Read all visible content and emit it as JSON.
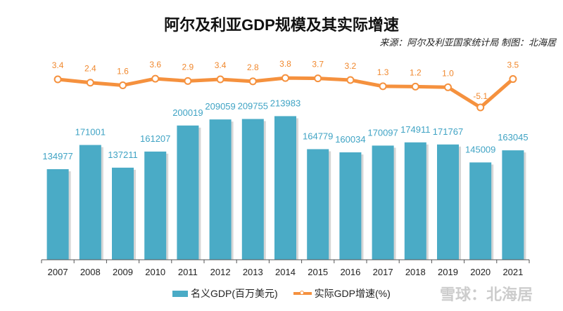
{
  "chart_data": {
    "type": "bar+line",
    "title": "阿尔及利亚GDP规模及其实际增速",
    "subtitle": "来源：阿尔及利亚国家统计局 制图：北海居",
    "categories": [
      "2007",
      "2008",
      "2009",
      "2010",
      "2011",
      "2012",
      "2013",
      "2014",
      "2015",
      "2016",
      "2017",
      "2018",
      "2019",
      "2020",
      "2021"
    ],
    "series": [
      {
        "name": "名义GDP(百万美元)",
        "type": "bar",
        "color": "#4aabc6",
        "values": [
          134977,
          171001,
          137211,
          161207,
          200019,
          209059,
          209755,
          213983,
          164779,
          160034,
          170097,
          174911,
          171767,
          145009,
          163045
        ]
      },
      {
        "name": "实际GDP增速(%)",
        "type": "line",
        "color": "#f5913e",
        "values": [
          3.4,
          2.4,
          1.6,
          3.6,
          2.9,
          3.4,
          2.8,
          3.8,
          3.7,
          3.2,
          1.3,
          1.2,
          1.0,
          -5.1,
          3.5
        ]
      }
    ],
    "legend": "bottom",
    "grid": false
  },
  "watermark": "雪球：北海居"
}
